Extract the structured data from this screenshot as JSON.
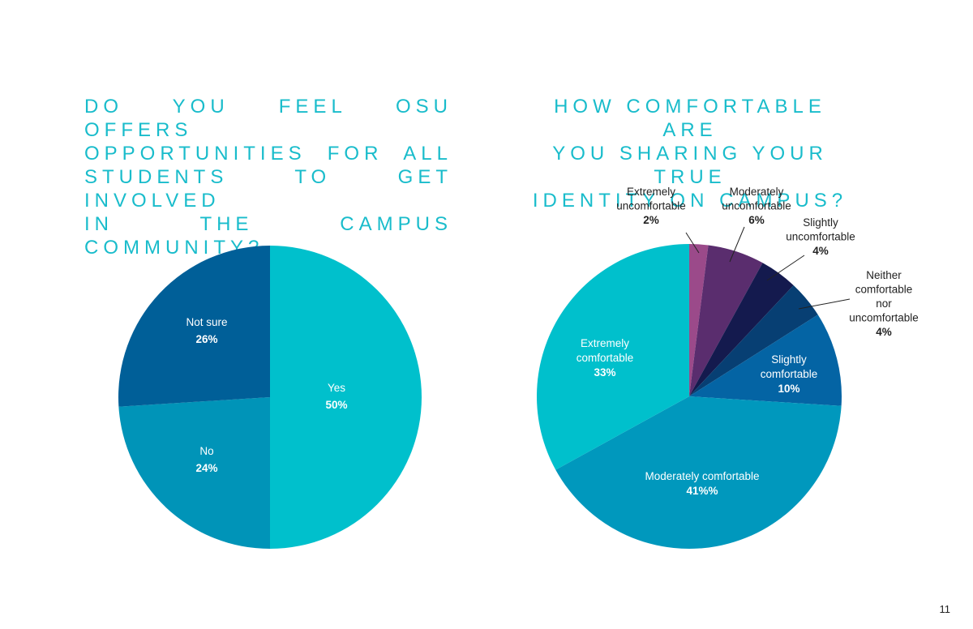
{
  "page_number": "11",
  "chart_data": [
    {
      "type": "pie",
      "title_lines": [
        "DO YOU FEEL OSU OFFERS",
        "OPPORTUNITIES FOR ALL",
        "STUDENTS TO GET INVOLVED",
        "IN THE CAMPUS COMMUNITY?"
      ],
      "slices": [
        {
          "label": "Yes",
          "value_label": "50%",
          "value": 50,
          "color": "#00c0cc"
        },
        {
          "label": "No",
          "value_label": "24%",
          "value": 24,
          "color": "#0094b8"
        },
        {
          "label": "Not sure",
          "value_label": "26%",
          "value": 26,
          "color": "#005f98"
        }
      ]
    },
    {
      "type": "pie",
      "title_lines": [
        "HOW COMFORTABLE ARE",
        "YOU SHARING YOUR TRUE",
        "IDENTITY ON CAMPUS?"
      ],
      "slices": [
        {
          "label": "Extremely uncomfortable",
          "label_lines": [
            "Extremely",
            "uncomfortable"
          ],
          "value_label": "2%",
          "value": 2,
          "color": "#9b4a8a"
        },
        {
          "label": "Moderately uncomfortable",
          "label_lines": [
            "Moderately",
            "uncomfortable"
          ],
          "value_label": "6%",
          "value": 6,
          "color": "#5a2d6e"
        },
        {
          "label": "Slightly uncomfortable",
          "label_lines": [
            "Slightly",
            "uncomfortable"
          ],
          "value_label": "4%",
          "value": 4,
          "color": "#141a4e"
        },
        {
          "label": "Neither comfortable nor uncomfortable",
          "label_lines": [
            "Neither",
            "comfortable",
            "nor",
            "uncomfortable"
          ],
          "value_label": "4%",
          "value": 4,
          "color": "#073f73"
        },
        {
          "label": "Slightly comfortable",
          "label_lines": [
            "Slightly",
            "comfortable"
          ],
          "value_label": "10%",
          "value": 10,
          "color": "#0464a4"
        },
        {
          "label": "Moderately comfortable",
          "label_lines": [
            "Moderately comfortable"
          ],
          "value_label": "41%%",
          "value": 41,
          "color": "#0098bd"
        },
        {
          "label": "Extremely comfortable",
          "label_lines": [
            "Extremely",
            "comfortable"
          ],
          "value_label": "33%",
          "value": 33,
          "color": "#00c0cc"
        }
      ]
    }
  ]
}
